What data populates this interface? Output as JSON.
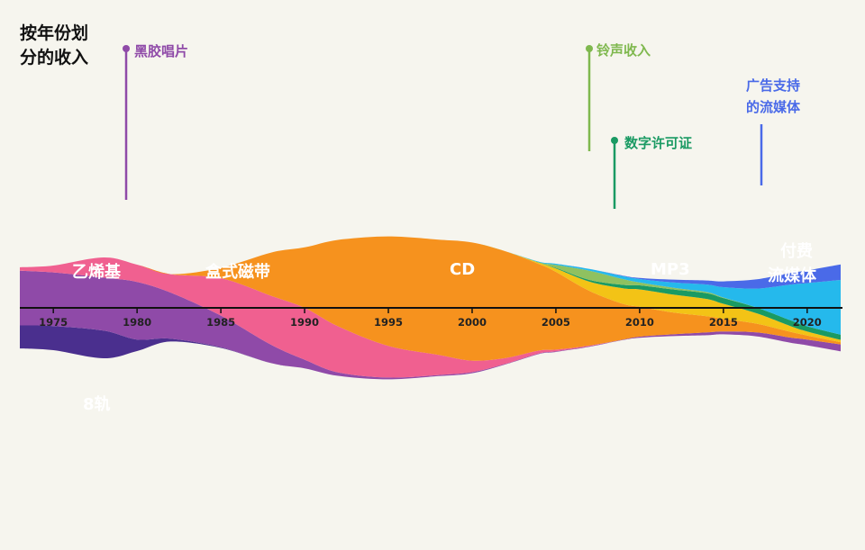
{
  "chart_data": {
    "type": "area",
    "subtype": "streamgraph",
    "title": [
      "按年份划",
      "分的收入"
    ],
    "x": [
      1973,
      1975,
      1978,
      1980,
      1982,
      1985,
      1988,
      1990,
      1992,
      1995,
      1998,
      2000,
      2002,
      2004,
      2005,
      2007,
      2009,
      2010,
      2012,
      2014,
      2015,
      2017,
      2019,
      2020,
      2022
    ],
    "x_ticks": [
      1975,
      1980,
      1985,
      1990,
      1995,
      2000,
      2005,
      2010,
      2015,
      2020
    ],
    "series": [
      {
        "name": "8轨",
        "color": "#4a2f8e",
        "values": [
          4.0,
          4.2,
          4.8,
          2.0,
          0.5,
          0.1,
          0,
          0,
          0,
          0,
          0,
          0,
          0,
          0,
          0,
          0,
          0,
          0,
          0,
          0,
          0,
          0,
          0,
          0,
          0
        ]
      },
      {
        "name": "乙烯基",
        "color": "#8f4aa8",
        "values": [
          9.5,
          9.3,
          9.2,
          10.0,
          8.0,
          5.5,
          3.2,
          1.5,
          0.6,
          0.3,
          0.2,
          0.2,
          0.1,
          0.1,
          0.1,
          0.1,
          0.1,
          0.2,
          0.3,
          0.5,
          0.5,
          0.7,
          0.9,
          1.0,
          1.2
        ]
      },
      {
        "name": "盒式磁带",
        "color": "#f06090",
        "values": [
          0.6,
          1.2,
          3.5,
          3.0,
          3.2,
          6.5,
          8.5,
          9.0,
          8.0,
          5.5,
          3.5,
          2.0,
          1.0,
          0.5,
          0.3,
          0.1,
          0,
          0,
          0,
          0,
          0,
          0,
          0,
          0,
          0
        ]
      },
      {
        "name": "CD",
        "color": "#f6921e",
        "values": [
          0,
          0,
          0,
          0,
          0,
          1.8,
          7.5,
          10.5,
          15.0,
          19.0,
          20.0,
          20.5,
          18.5,
          15.0,
          13.5,
          9.5,
          6.2,
          5.2,
          3.8,
          2.8,
          2.2,
          1.5,
          1.0,
          0.7,
          0.4
        ]
      },
      {
        "name": "MP3",
        "color": "#f3c316",
        "values": [
          0,
          0,
          0,
          0,
          0,
          0,
          0,
          0,
          0,
          0,
          0,
          0,
          0,
          0.2,
          0.6,
          1.6,
          2.7,
          3.0,
          3.1,
          3.0,
          2.6,
          1.8,
          1.0,
          0.7,
          0.4
        ]
      },
      {
        "name": "数字许可证",
        "color": "#1a9a63",
        "values": [
          0,
          0,
          0,
          0,
          0,
          0,
          0,
          0,
          0,
          0,
          0,
          0,
          0,
          0,
          0.1,
          0.3,
          0.6,
          0.7,
          0.9,
          1.0,
          1.0,
          1.0,
          1.0,
          0.9,
          0.9
        ]
      },
      {
        "name": "铃声收入",
        "color": "#8fc160",
        "values": [
          0,
          0,
          0,
          0,
          0,
          0,
          0,
          0,
          0,
          0,
          0,
          0,
          0,
          0.1,
          0.5,
          1.6,
          1.0,
          0.5,
          0.3,
          0.2,
          0.1,
          0,
          0,
          0,
          0
        ]
      },
      {
        "name": "付费流媒体",
        "color": "#25b9ec",
        "values": [
          0,
          0,
          0,
          0,
          0,
          0,
          0,
          0,
          0,
          0,
          0,
          0,
          0,
          0.1,
          0.2,
          0.3,
          0.5,
          0.6,
          0.9,
          1.3,
          1.8,
          3.3,
          6.2,
          7.5,
          9.5
        ]
      },
      {
        "name": "广告支持的流媒体",
        "color": "#4a6ae8",
        "values": [
          0,
          0,
          0,
          0,
          0,
          0,
          0,
          0,
          0,
          0,
          0,
          0,
          0,
          0,
          0,
          0,
          0.1,
          0.2,
          0.5,
          0.7,
          1.0,
          1.6,
          2.0,
          2.2,
          2.7
        ]
      }
    ],
    "labels": {
      "8轨": "8轨",
      "乙烯基": "乙烯基",
      "盒式磁带": "盒式磁带",
      "CD": "CD",
      "MP3": "MP3",
      "付费流媒体": [
        "付费",
        "流媒体"
      ],
      "黑胶唱片": "黑胶唱片",
      "铃声收入": "铃声收入",
      "数字许可证": "数字许可证",
      "广告支持的流媒体": [
        "广告支持",
        "的流媒体"
      ]
    },
    "annotation_colors": {
      "黑胶唱片": "#8f4aa8",
      "铃声收入": "#7fb84e",
      "数字许可证": "#1a9a63",
      "广告支持的流媒体": "#4a6ae8"
    }
  }
}
